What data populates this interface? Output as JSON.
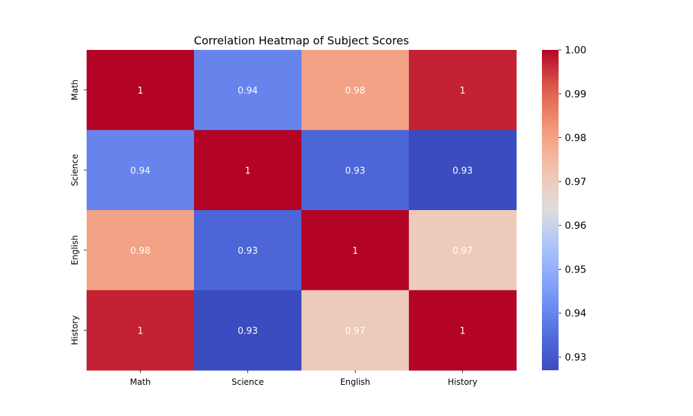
{
  "chart_data": {
    "type": "heatmap",
    "title": "Correlation Heatmap of Subject Scores",
    "x_categories": [
      "Math",
      "Science",
      "English",
      "History"
    ],
    "y_categories": [
      "Math",
      "Science",
      "English",
      "History"
    ],
    "values": [
      [
        1.0,
        0.94,
        0.98,
        0.997
      ],
      [
        0.94,
        1.0,
        0.933,
        0.927
      ],
      [
        0.98,
        0.933,
        1.0,
        0.97
      ],
      [
        0.997,
        0.927,
        0.97,
        1.0
      ]
    ],
    "cell_labels": [
      [
        "1",
        "0.94",
        "0.98",
        "1"
      ],
      [
        "0.94",
        "1",
        "0.93",
        "0.93"
      ],
      [
        "0.98",
        "0.93",
        "1",
        "0.97"
      ],
      [
        "1",
        "0.93",
        "0.97",
        "1"
      ]
    ],
    "colorbar": {
      "colormap": "coolwarm",
      "range": [
        0.927,
        1.0
      ],
      "ticks": [
        {
          "value": 0.93,
          "label": "0.93"
        },
        {
          "value": 0.94,
          "label": "0.94"
        },
        {
          "value": 0.95,
          "label": "0.95"
        },
        {
          "value": 0.96,
          "label": "0.96"
        },
        {
          "value": 0.97,
          "label": "0.97"
        },
        {
          "value": 0.98,
          "label": "0.98"
        },
        {
          "value": 0.99,
          "label": "0.99"
        },
        {
          "value": 1.0,
          "label": "1.00"
        }
      ]
    },
    "grid": false
  }
}
